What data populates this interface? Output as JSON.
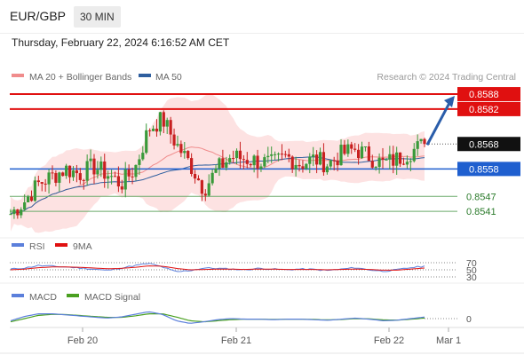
{
  "header": {
    "symbol": "EUR/GBP",
    "timeframe": "30 MIN",
    "datetime": "Thursday, February 22, 2024 6:16:52 AM CET"
  },
  "legend": {
    "ma20": {
      "label": "MA 20 + Bollinger Bands",
      "color": "#f08c8c"
    },
    "ma50": {
      "label": "MA 50",
      "color": "#2f5f9f"
    },
    "source": "Research © 2024 Trading Central"
  },
  "colors": {
    "up": "#3a9a3a",
    "down": "#c82020",
    "bands": "#fde2e2",
    "resistance": "#e01010",
    "pivot": "#1f5fcf",
    "support": "#6aaa6a",
    "arrow": "#2a5daa",
    "rsi": "#5b7fdb",
    "rsi_ma": "#e01010",
    "macd": "#5b7fdb",
    "macd_signal": "#4aa020"
  },
  "chart_data": [
    {
      "type": "candlestick",
      "title": "EUR/GBP 30 MIN",
      "x_ticks": [
        "Feb 20",
        "Feb 21",
        "Feb 22",
        "Mar 1"
      ],
      "ylim": [
        0.8535,
        0.8593
      ],
      "last_price": "0.8568",
      "levels": [
        {
          "value": 0.8588,
          "label": "0.8588",
          "kind": "resistance"
        },
        {
          "value": 0.8582,
          "label": "0.8582",
          "kind": "resistance"
        },
        {
          "value": 0.8558,
          "label": "0.8558",
          "kind": "pivot"
        },
        {
          "value": 0.8547,
          "label": "0.8547",
          "kind": "support"
        },
        {
          "value": 0.8541,
          "label": "0.8541",
          "kind": "support"
        }
      ],
      "close_path": [
        0.854,
        0.8545,
        0.8552,
        0.8555,
        0.8558,
        0.8556,
        0.8559,
        0.8556,
        0.8552,
        0.8558,
        0.8574,
        0.8578,
        0.8568,
        0.856,
        0.855,
        0.8558,
        0.8563,
        0.8562,
        0.8561,
        0.856,
        0.8563,
        0.856,
        0.8562,
        0.856,
        0.8564,
        0.8566,
        0.8563,
        0.856,
        0.8562,
        0.8565,
        0.8568
      ],
      "forecast": {
        "from": 0.8568,
        "to": 0.8588,
        "direction": "up"
      },
      "series": [
        {
          "name": "MA 20 + Bollinger Bands"
        },
        {
          "name": "MA 50"
        }
      ]
    },
    {
      "type": "line",
      "series": [
        {
          "name": "RSI"
        },
        {
          "name": "9MA"
        }
      ],
      "y_ticks": [
        "70",
        "50",
        "30"
      ],
      "levels": [
        70,
        50,
        30
      ],
      "ylim": [
        0,
        100
      ],
      "rsi_path": [
        52,
        55,
        62,
        60,
        58,
        55,
        52,
        48,
        55,
        62,
        68,
        58,
        44,
        48,
        55,
        54,
        52,
        50,
        54,
        52,
        50,
        52,
        51,
        48,
        52,
        56,
        50,
        46,
        50,
        56,
        60
      ],
      "ma_path": [
        50,
        52,
        56,
        58,
        58,
        57,
        55,
        53,
        54,
        57,
        61,
        60,
        54,
        50,
        51,
        52,
        52,
        51,
        52,
        52,
        51,
        51,
        51,
        50,
        51,
        52,
        51,
        49,
        49,
        52,
        55
      ]
    },
    {
      "type": "line",
      "series": [
        {
          "name": "MACD"
        },
        {
          "name": "MACD Signal"
        }
      ],
      "y_ticks": [
        "0"
      ],
      "zero_line": 0,
      "ylim": [
        -1,
        1
      ],
      "macd_path": [
        -0.2,
        0.2,
        0.45,
        0.45,
        0.35,
        0.25,
        0.15,
        0.05,
        0.15,
        0.4,
        0.65,
        0.4,
        -0.2,
        -0.45,
        -0.3,
        -0.1,
        0.0,
        -0.05,
        -0.05,
        -0.1,
        -0.05,
        -0.05,
        -0.1,
        -0.15,
        -0.05,
        0.05,
        -0.05,
        -0.2,
        -0.15,
        0.0,
        0.15
      ],
      "signal_path": [
        -0.3,
        0.0,
        0.3,
        0.4,
        0.38,
        0.3,
        0.2,
        0.12,
        0.12,
        0.25,
        0.45,
        0.45,
        0.15,
        -0.2,
        -0.3,
        -0.2,
        -0.1,
        -0.05,
        -0.05,
        -0.08,
        -0.06,
        -0.05,
        -0.08,
        -0.12,
        -0.08,
        0.0,
        -0.02,
        -0.12,
        -0.14,
        -0.06,
        0.05
      ]
    }
  ]
}
